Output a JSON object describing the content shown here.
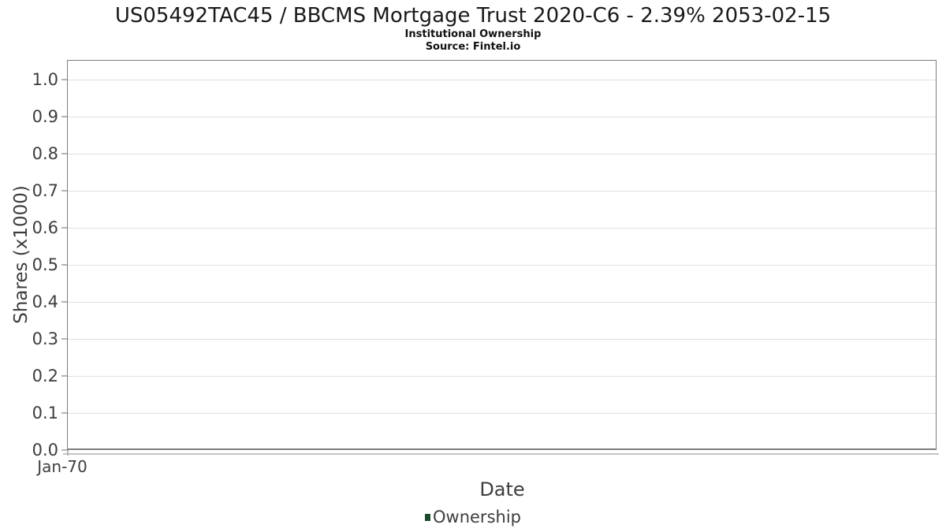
{
  "header": {
    "title": "US05492TAC45 / BBCMS Mortgage Trust 2020-C6 - 2.39% 2053-02-15",
    "subtitle": "Institutional Ownership",
    "source": "Source: Fintel.io"
  },
  "chart_data": {
    "type": "line",
    "title": "US05492TAC45 / BBCMS Mortgage Trust 2020-C6 - 2.39% 2053-02-15",
    "subtitle": "Institutional Ownership",
    "source": "Source: Fintel.io",
    "xlabel": "Date",
    "ylabel": "Shares (x1000)",
    "xticks": [
      "Jan-70"
    ],
    "yticks": [
      "0.0",
      "0.1",
      "0.2",
      "0.3",
      "0.4",
      "0.5",
      "0.6",
      "0.7",
      "0.8",
      "0.9",
      "1.0"
    ],
    "ylim": [
      0.0,
      1.05
    ],
    "grid": "horizontal",
    "legend_position": "bottom",
    "series": [
      {
        "name": "Ownership",
        "color": "#1c4a2e",
        "x": [],
        "values": []
      }
    ]
  },
  "colors": {
    "series_green": "#1c4a2e",
    "plot_border": "#7d7d7d",
    "gridline": "#e0e0e0",
    "tick_mark": "#b5b5b5",
    "axis_text": "#3d3d3d",
    "title_text": "#1a1a1a",
    "background": "#ffffff"
  }
}
